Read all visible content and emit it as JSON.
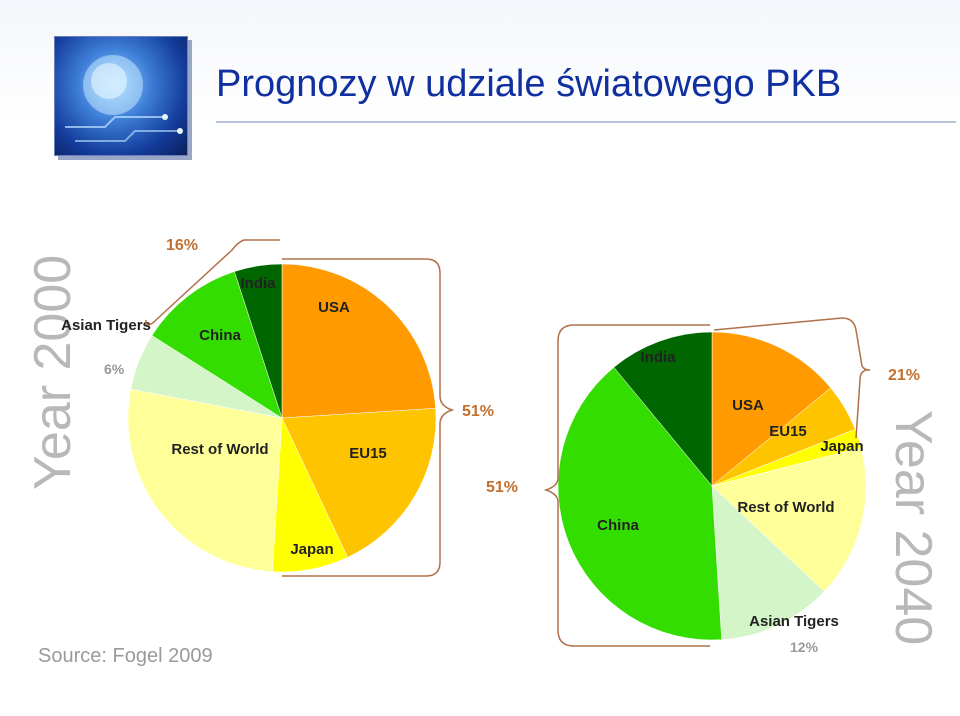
{
  "title": "Prognozy w udziale światowego PKB",
  "source": "Source: Fogel 2009",
  "chart_data": [
    {
      "type": "pie",
      "title": "Year 2000",
      "slices": [
        {
          "label": "USA",
          "value": 24,
          "color": "#ff9a00"
        },
        {
          "label": "EU15",
          "value": 19,
          "color": "#ffc400"
        },
        {
          "label": "Japan",
          "value": 8,
          "color": "#ffff00"
        },
        {
          "label": "Rest of World",
          "value": 27,
          "color": "#ffff9a"
        },
        {
          "label": "Asian Tigers",
          "value": 6,
          "color": "#d4f5c8"
        },
        {
          "label": "China",
          "value": 11,
          "color": "#33dd00"
        },
        {
          "label": "India",
          "value": 5,
          "color": "#006600"
        }
      ],
      "annotations": [
        {
          "text": "16%",
          "group": [
            "China",
            "India"
          ]
        },
        {
          "text": "51%",
          "group": [
            "USA",
            "EU15",
            "Japan"
          ]
        },
        {
          "text": "6%",
          "group": [
            "Asian Tigers"
          ]
        }
      ]
    },
    {
      "type": "pie",
      "title": "Year 2040",
      "slices": [
        {
          "label": "USA",
          "value": 14,
          "color": "#ff9a00"
        },
        {
          "label": "EU15",
          "value": 5,
          "color": "#ffc400"
        },
        {
          "label": "Japan",
          "value": 2,
          "color": "#ffff00"
        },
        {
          "label": "Rest of World",
          "value": 16,
          "color": "#ffff9a"
        },
        {
          "label": "Asian Tigers",
          "value": 12,
          "color": "#d4f5c8"
        },
        {
          "label": "China",
          "value": 40,
          "color": "#33dd00"
        },
        {
          "label": "India",
          "value": 11,
          "color": "#006600"
        }
      ],
      "annotations": [
        {
          "text": "21%",
          "group": [
            "USA",
            "EU15",
            "Japan"
          ]
        },
        {
          "text": "51%",
          "group": [
            "China",
            "India"
          ]
        },
        {
          "text": "12%",
          "group": [
            "Asian Tigers"
          ]
        }
      ]
    }
  ]
}
